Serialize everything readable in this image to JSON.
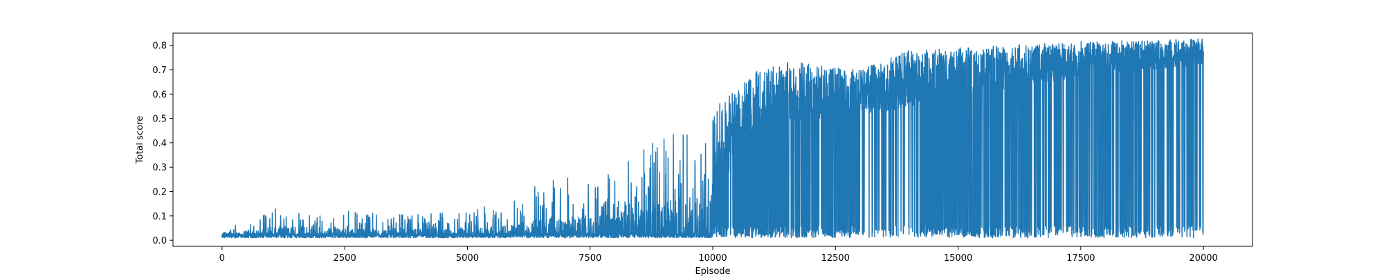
{
  "chart_data": {
    "type": "line",
    "title": "",
    "xlabel": "Episode",
    "ylabel": "Total score",
    "xlim": [
      -1000,
      21000
    ],
    "ylim": [
      -0.025,
      0.85
    ],
    "xticks": [
      0,
      2500,
      5000,
      7500,
      10000,
      12500,
      15000,
      17500,
      20000
    ],
    "yticks": [
      0.0,
      0.1,
      0.2,
      0.3,
      0.4,
      0.5,
      0.6,
      0.7,
      0.8
    ],
    "xtick_labels": [
      "0",
      "2500",
      "5000",
      "7500",
      "10000",
      "12500",
      "15000",
      "17500",
      "20000"
    ],
    "ytick_labels": [
      "0.0",
      "0.1",
      "0.2",
      "0.3",
      "0.4",
      "0.5",
      "0.6",
      "0.7",
      "0.8"
    ],
    "grid": false,
    "series": [
      {
        "color": "#1f77b4",
        "x_range": [
          0,
          20000
        ],
        "baseline": 0.01,
        "upper_envelope": {
          "x": [
            0,
            500,
            1000,
            2500,
            3500,
            5000,
            6000,
            6500,
            7500,
            8000,
            8500,
            9000,
            9500,
            10000,
            10500,
            11000,
            11500,
            12000,
            12500,
            13000,
            13500,
            14000,
            15000,
            16000,
            17000,
            18000,
            19000,
            20000
          ],
          "y": [
            0.03,
            0.1,
            0.15,
            0.12,
            0.11,
            0.12,
            0.17,
            0.25,
            0.26,
            0.3,
            0.37,
            0.45,
            0.5,
            0.54,
            0.62,
            0.72,
            0.73,
            0.73,
            0.71,
            0.7,
            0.74,
            0.78,
            0.79,
            0.8,
            0.81,
            0.82,
            0.82,
            0.83
          ]
        },
        "dense_lower_envelope": {
          "x": [
            0,
            9000,
            9500,
            10000,
            10500,
            11000,
            12000,
            13000,
            14000,
            15000,
            16000,
            17000,
            18000,
            19000,
            20000
          ],
          "y": [
            0.01,
            0.01,
            0.05,
            0.15,
            0.35,
            0.45,
            0.5,
            0.5,
            0.55,
            0.6,
            0.62,
            0.65,
            0.68,
            0.7,
            0.72
          ]
        },
        "drop_density_per_1000_episodes": {
          "x": [
            12000,
            13000,
            14000,
            15000,
            16000,
            17000,
            18000,
            19000,
            20000
          ],
          "y": [
            2,
            6,
            12,
            25,
            20,
            15,
            18,
            14,
            10
          ]
        }
      }
    ]
  }
}
